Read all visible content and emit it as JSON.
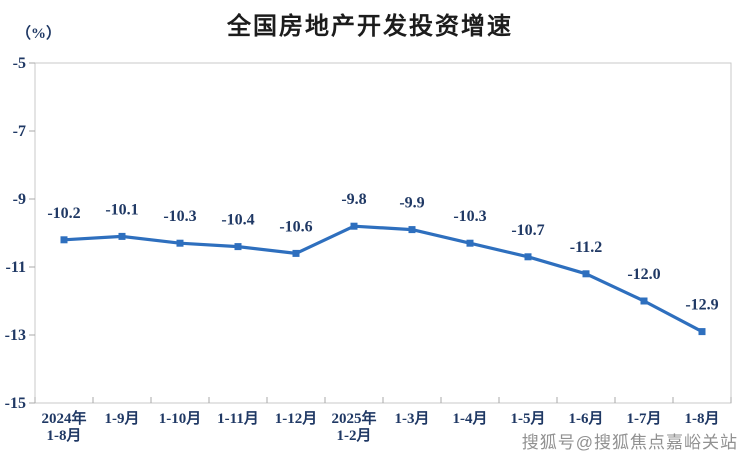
{
  "page": {
    "title": "全国房地产开发投资增速",
    "unit_label": "（%）",
    "watermark": "搜狐号@搜狐焦点嘉峪关站"
  },
  "chart_data": {
    "type": "line",
    "title": "全国房地产开发投资增速",
    "ylabel": "（%）",
    "xlabel": "",
    "categories": [
      [
        "2024年",
        "1-8月"
      ],
      [
        "1-9月"
      ],
      [
        "1-10月"
      ],
      [
        "1-11月"
      ],
      [
        "1-12月"
      ],
      [
        "2025年",
        "1-2月"
      ],
      [
        "1-3月"
      ],
      [
        "1-4月"
      ],
      [
        "1-5月"
      ],
      [
        "1-6月"
      ],
      [
        "1-7月"
      ],
      [
        "1-8月"
      ]
    ],
    "values": [
      -10.2,
      -10.1,
      -10.3,
      -10.4,
      -10.6,
      -9.8,
      -9.9,
      -10.3,
      -10.7,
      -11.2,
      -12.0,
      -12.9
    ],
    "data_labels": [
      "-10.2",
      "-10.1",
      "-10.3",
      "-10.4",
      "-10.6",
      "-9.8",
      "-9.9",
      "-10.3",
      "-10.7",
      "-11.2",
      "-12.0",
      "-12.9"
    ],
    "ylim": [
      -15,
      -5
    ],
    "yticks": [
      -5,
      -7,
      -9,
      -11,
      -13,
      -15
    ],
    "grid": false,
    "legend_position": "none",
    "line_color": "#2E6FBE",
    "marker": "square",
    "axis_text_color": "#1F3864",
    "frame_color": "#C9C9C9",
    "tick_color": "#A9A9A9",
    "title_color": "#1C1C1C",
    "watermark_color": "#919191"
  }
}
